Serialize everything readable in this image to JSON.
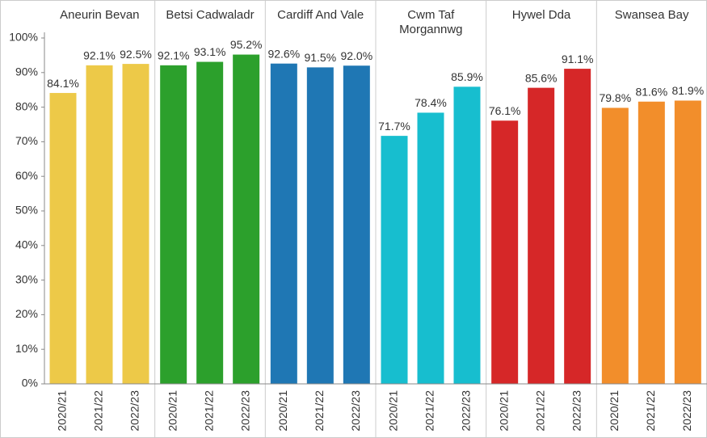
{
  "chart_data": {
    "type": "bar",
    "categories": [
      "2020/21",
      "2021/22",
      "2022/23"
    ],
    "series": [
      {
        "name": "Aneurin Bevan",
        "color": "#edc948",
        "values": [
          84.1,
          92.1,
          92.5
        ],
        "value_labels": [
          "84.1%",
          "92.1%",
          "92.5%"
        ]
      },
      {
        "name": "Betsi Cadwaladr",
        "color": "#2ca02c",
        "values": [
          92.1,
          93.1,
          95.2
        ],
        "value_labels": [
          "92.1%",
          "93.1%",
          "95.2%"
        ]
      },
      {
        "name": "Cardiff And Vale",
        "color": "#1f77b4",
        "values": [
          92.6,
          91.5,
          92.0
        ],
        "value_labels": [
          "92.6%",
          "91.5%",
          "92.0%"
        ]
      },
      {
        "name": "Cwm Taf Morgannwg",
        "color": "#17becf",
        "values": [
          71.7,
          78.4,
          85.9
        ],
        "value_labels": [
          "71.7%",
          "78.4%",
          "85.9%"
        ]
      },
      {
        "name": "Hywel Dda",
        "color": "#d62728",
        "values": [
          76.1,
          85.6,
          91.1
        ],
        "value_labels": [
          "76.1%",
          "85.6%",
          "91.1%"
        ]
      },
      {
        "name": "Swansea Bay",
        "color": "#f28e2b",
        "values": [
          79.8,
          81.6,
          81.9
        ],
        "value_labels": [
          "79.8%",
          "81.6%",
          "81.9%"
        ]
      }
    ],
    "ylim": [
      0,
      100
    ],
    "yticks": [
      {
        "value": 0,
        "label": "0%"
      },
      {
        "value": 10,
        "label": "10%"
      },
      {
        "value": 20,
        "label": "20%"
      },
      {
        "value": 30,
        "label": "30%"
      },
      {
        "value": 40,
        "label": "40%"
      },
      {
        "value": 50,
        "label": "50%"
      },
      {
        "value": 60,
        "label": "60%"
      },
      {
        "value": 70,
        "label": "70%"
      },
      {
        "value": 80,
        "label": "80%"
      },
      {
        "value": 90,
        "label": "90%"
      },
      {
        "value": 100,
        "label": "100%"
      }
    ]
  }
}
